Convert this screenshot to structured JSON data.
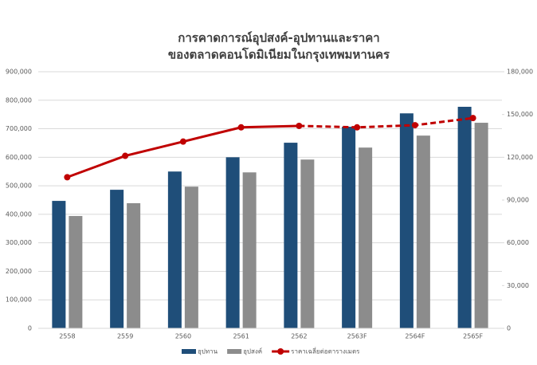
{
  "chart_data": {
    "type": "bar-line",
    "title": [
      "การคาดการณ์อุปสงค์-อุปทานและราคา",
      "ของตลาดคอนโดมิเนียมในกรุงเทพมหานคร"
    ],
    "categories": [
      "2558",
      "2559",
      "2560",
      "2561",
      "2562",
      "2563F",
      "2564F",
      "2565F"
    ],
    "series": [
      {
        "name": "อุปทาน",
        "color": "#1f4e79",
        "type": "bar",
        "values": [
          447000,
          486000,
          550000,
          600000,
          651000,
          707000,
          754000,
          777000
        ]
      },
      {
        "name": "อุปสงค์",
        "color": "#8c8c8c",
        "type": "bar",
        "values": [
          394000,
          439000,
          497000,
          547000,
          592000,
          634000,
          676000,
          721000
        ]
      },
      {
        "name": "ราคาเฉลี่ยต่อตารางเมตร",
        "color": "#c00000",
        "type": "line",
        "axis": "y2",
        "dashed_from": 4,
        "values": [
          106000,
          121000,
          131000,
          141000,
          142000,
          141000,
          142500,
          147500
        ]
      }
    ],
    "ylim": [
      0,
      900000
    ],
    "yticks": [
      0,
      {
        "value": 100000,
        "label": "100,000"
      },
      {
        "value": 200000,
        "label": "200,000"
      },
      {
        "value": 300000,
        "label": "300,000"
      },
      {
        "value": 400000,
        "label": "400,000"
      },
      {
        "value": 500000,
        "label": "500,000"
      },
      {
        "value": 600000,
        "label": "600,000"
      },
      {
        "value": 700000,
        "label": "700,000"
      },
      {
        "value": 800000,
        "label": "800,000"
      },
      {
        "value": 900000,
        "label": "900,000"
      }
    ],
    "y2lim": [
      0,
      180000
    ],
    "y2ticks": [
      0,
      {
        "value": 30000,
        "label": "30,000"
      },
      {
        "value": 60000,
        "label": "60,000"
      },
      {
        "value": 90000,
        "label": "90,000"
      },
      {
        "value": 120000,
        "label": "120,000"
      },
      {
        "value": 150000,
        "label": "150,000"
      },
      {
        "value": 180000,
        "label": "180,000"
      }
    ],
    "grid": true,
    "legend": "bottom"
  }
}
